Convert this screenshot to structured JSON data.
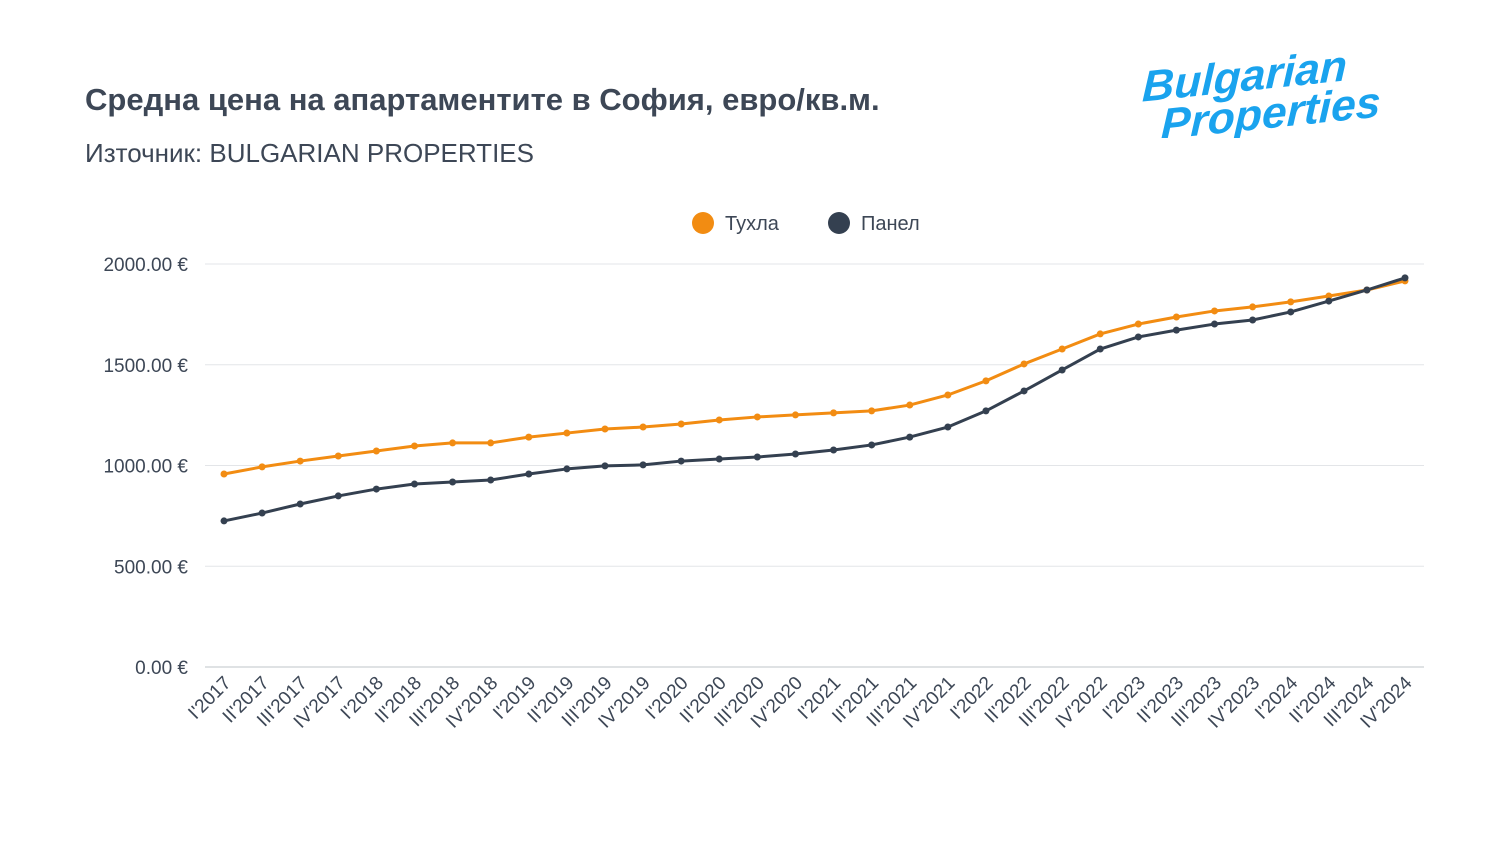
{
  "logo_text": "Bulgarian Properties",
  "chart_data": {
    "type": "line",
    "title": "Средна цена на апартаментите в София, евро/кв.м.",
    "subtitle": "Източник: BULGARIAN PROPERTIES",
    "xlabel": "",
    "ylabel": "",
    "ylim": [
      0,
      2000
    ],
    "yticks": [
      "0.00 €",
      "500.00 €",
      "1000.00 €",
      "1500.00 €",
      "2000.00 €"
    ],
    "ytick_values": [
      0,
      500,
      1000,
      1500,
      2000
    ],
    "grid": true,
    "legend_position": "top",
    "categories": [
      "I'2017",
      "II'2017",
      "III'2017",
      "IV'2017",
      "I'2018",
      "II'2018",
      "III'2018",
      "IV'2018",
      "I'2019",
      "II'2019",
      "III'2019",
      "IV'2019",
      "I'2020",
      "II'2020",
      "III'2020",
      "IV'2020",
      "I'2021",
      "II'2021",
      "III'2021",
      "IV'2021",
      "I'2022",
      "II'2022",
      "III'2022",
      "IV'2022",
      "I'2023",
      "II'2023",
      "III'2023",
      "IV'2023",
      "I'2024",
      "II'2024",
      "III'2024",
      "IV'2024"
    ],
    "series": [
      {
        "name": "Тухла",
        "color": "#f28c12",
        "values": [
          958,
          993,
          1022,
          1047,
          1072,
          1097,
          1112,
          1112,
          1141,
          1161,
          1181,
          1191,
          1206,
          1226,
          1241,
          1251,
          1261,
          1271,
          1300,
          1350,
          1420,
          1504,
          1578,
          1653,
          1702,
          1737,
          1767,
          1787,
          1812,
          1841,
          1871,
          1916
        ]
      },
      {
        "name": "Панел",
        "color": "#344050",
        "values": [
          725,
          764,
          809,
          849,
          883,
          908,
          918,
          928,
          958,
          983,
          998,
          1003,
          1022,
          1032,
          1042,
          1057,
          1077,
          1102,
          1141,
          1191,
          1271,
          1370,
          1474,
          1578,
          1638,
          1672,
          1702,
          1722,
          1762,
          1816,
          1871,
          1931
        ]
      }
    ]
  }
}
